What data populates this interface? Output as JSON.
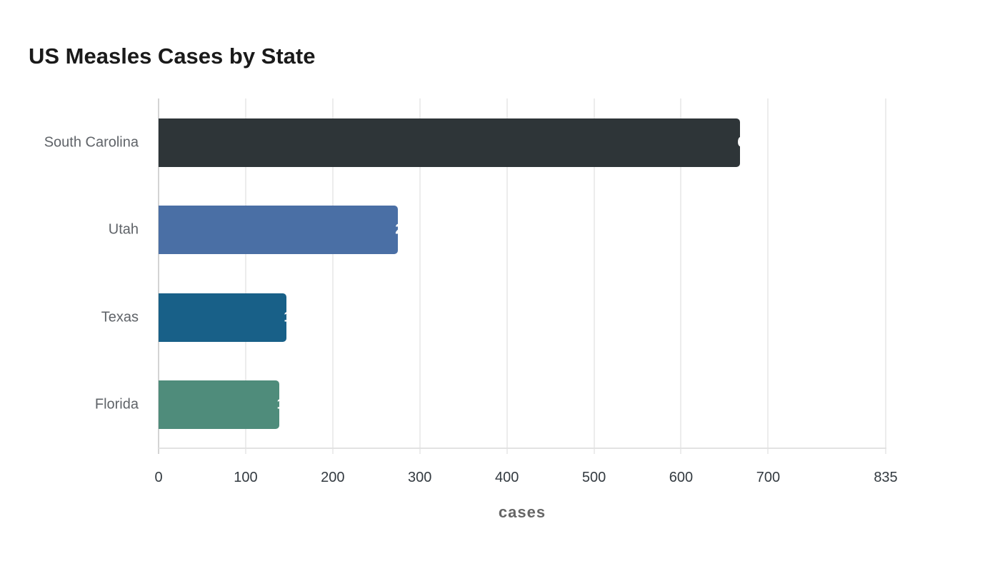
{
  "title": "US Measles Cases by State",
  "chart_data": {
    "type": "bar",
    "orientation": "horizontal",
    "title": "US Measles Cases by State",
    "xlabel": "cases",
    "ylabel": "",
    "categories": [
      "South Carolina",
      "Utah",
      "Texas",
      "Florida"
    ],
    "values": [
      668,
      275,
      147,
      139
    ],
    "colors": [
      "#2e3538",
      "#4a6fa5",
      "#186088",
      "#4f8c7b"
    ],
    "xlim": [
      0,
      835
    ],
    "xticks": [
      0,
      100,
      200,
      300,
      400,
      500,
      600,
      700,
      835
    ],
    "grid": true,
    "legend": "none",
    "value_labels": "white, at bar end (mostly clipped)"
  },
  "axis": {
    "x_title": "cases",
    "ticks": [
      "0",
      "100",
      "200",
      "300",
      "400",
      "500",
      "600",
      "700",
      "835"
    ]
  },
  "bars": [
    {
      "label": "South Carolina",
      "value": "668"
    },
    {
      "label": "Utah",
      "value": "275"
    },
    {
      "label": "Texas",
      "value": "147"
    },
    {
      "label": "Florida",
      "value": "139"
    }
  ]
}
